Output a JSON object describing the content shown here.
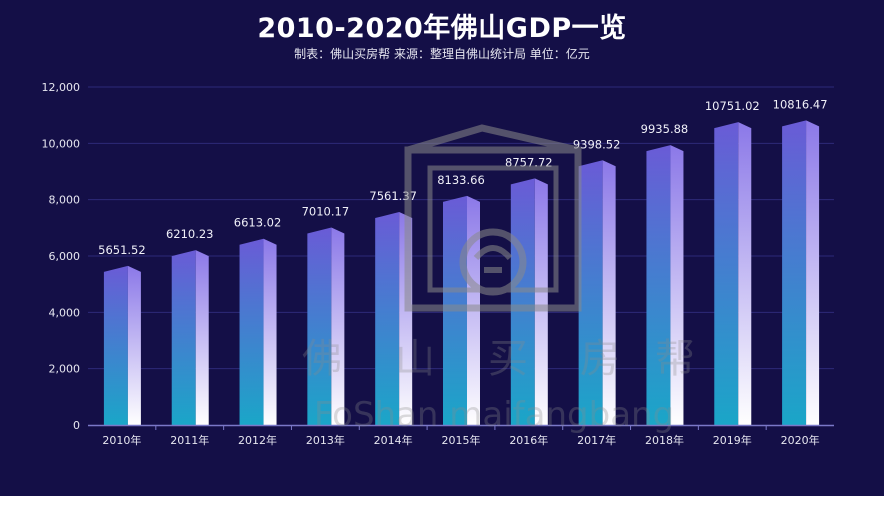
{
  "chart_data": {
    "type": "bar",
    "title": "2010-2020年佛山GDP一览",
    "subtitle": "制表：佛山买房帮 来源：整理自佛山统计局 单位：亿元",
    "categories": [
      "2010年",
      "2011年",
      "2012年",
      "2013年",
      "2014年",
      "2015年",
      "2016年",
      "2017年",
      "2018年",
      "2019年",
      "2020年"
    ],
    "values": [
      5651.52,
      6210.23,
      6613.02,
      7010.17,
      7561.37,
      8133.66,
      8757.72,
      9398.52,
      9935.88,
      10751.02,
      10816.47
    ],
    "data_labels": [
      "5651.52",
      "6210.23",
      "6613.02",
      "7010.17",
      "7561.37",
      "8133.66",
      "8757.72",
      "9398.52",
      "9935.88",
      "10751.02",
      "10816.47"
    ],
    "ylim": [
      0,
      12000
    ],
    "yticks": [
      0,
      2000,
      4000,
      6000,
      8000,
      10000,
      12000
    ],
    "ytick_labels": [
      "0",
      "2,000",
      "4,000",
      "6,000",
      "8,000",
      "10,000",
      "12,000"
    ],
    "xlabel": "",
    "ylabel": "",
    "grid": true,
    "colors": {
      "background": "#140f47",
      "bar_top": "#6a5bd6",
      "bar_bottom": "#1aa6c8",
      "bar_side_top": "#8b78e8",
      "bar_side_bottom": "#ffffff",
      "grid": "#2d2a78",
      "axis": "#7a78c8"
    }
  },
  "watermark": {
    "chars": [
      "佛",
      "山",
      "买",
      "房",
      "帮"
    ],
    "latin": "FoShan maifangbang"
  }
}
